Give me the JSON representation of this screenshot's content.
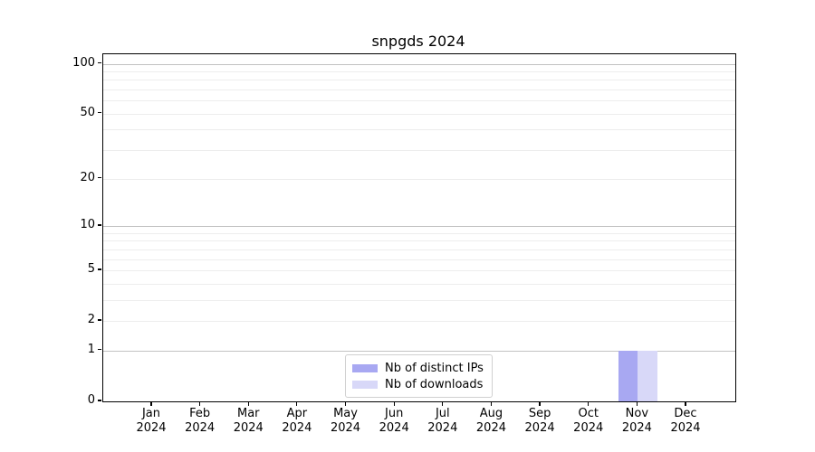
{
  "title": "snpgds 2024",
  "chart_data": {
    "type": "bar",
    "title": "snpgds 2024",
    "categories": [
      "Jan 2024",
      "Feb 2024",
      "Mar 2024",
      "Apr 2024",
      "May 2024",
      "Jun 2024",
      "Jul 2024",
      "Aug 2024",
      "Sep 2024",
      "Oct 2024",
      "Nov 2024",
      "Dec 2024"
    ],
    "x_ticks": [
      {
        "line1": "Jan",
        "line2": "2024"
      },
      {
        "line1": "Feb",
        "line2": "2024"
      },
      {
        "line1": "Mar",
        "line2": "2024"
      },
      {
        "line1": "Apr",
        "line2": "2024"
      },
      {
        "line1": "May",
        "line2": "2024"
      },
      {
        "line1": "Jun",
        "line2": "2024"
      },
      {
        "line1": "Jul",
        "line2": "2024"
      },
      {
        "line1": "Aug",
        "line2": "2024"
      },
      {
        "line1": "Sep",
        "line2": "2024"
      },
      {
        "line1": "Oct",
        "line2": "2024"
      },
      {
        "line1": "Nov",
        "line2": "2024"
      },
      {
        "line1": "Dec",
        "line2": "2024"
      }
    ],
    "series": [
      {
        "name": "Nb of distinct IPs",
        "color": "#a8a8f2",
        "values": [
          0,
          0,
          0,
          0,
          0,
          0,
          0,
          0,
          0,
          0,
          1,
          0
        ]
      },
      {
        "name": "Nb of downloads",
        "color": "#d8d8f8",
        "values": [
          0,
          0,
          0,
          0,
          0,
          0,
          0,
          0,
          0,
          0,
          1,
          0
        ]
      }
    ],
    "yscale": "log1p",
    "ylim": [
      0,
      114
    ],
    "y_ticks": [
      {
        "value": 0,
        "label": "0"
      },
      {
        "value": 1,
        "label": "1"
      },
      {
        "value": 2,
        "label": "2"
      },
      {
        "value": 5,
        "label": "5"
      },
      {
        "value": 10,
        "label": "10"
      },
      {
        "value": 20,
        "label": "20"
      },
      {
        "value": 50,
        "label": "50"
      },
      {
        "value": 100,
        "label": "100"
      }
    ],
    "grid": {
      "on": true,
      "decade_lines": [
        1,
        10,
        100
      ],
      "minor_lines": [
        2,
        3,
        4,
        5,
        6,
        7,
        8,
        9,
        20,
        30,
        40,
        50,
        60,
        70,
        80,
        90
      ],
      "decade_color": "#c2c2c2",
      "minor_color": "#ededed"
    },
    "legend": {
      "position": "lower center",
      "labels": [
        "Nb of distinct IPs",
        "Nb of downloads"
      ]
    }
  }
}
